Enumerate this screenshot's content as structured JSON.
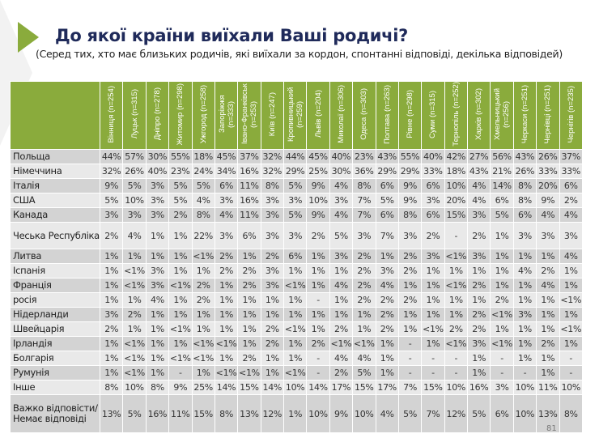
{
  "title": "До якої країни виїхали Ваші родичі?",
  "subtitle": "(Серед тих, хто має близьких родичів, які виїхали за кордон, спонтанні відповіді, декілька відповідей)",
  "page_number": "81",
  "colors": {
    "header": "#8aab3c",
    "row_dark": "#d3d3d3",
    "row_light": "#e9e9e9",
    "title": "#1f2a5a"
  },
  "columns": [
    "Вінниця (n=254)",
    "Луцьк (n=315)",
    "Дніпро (n=278)",
    "Житомир (n=298)",
    "Ужгород (n=258)",
    "Запоріжжя (n=333)",
    "Івано-Франківськ (n=253)",
    "Київ (n=247)",
    "Кропивницький (n=259)",
    "Львів (n=204)",
    "Миколаї (n=306)",
    "Одеса (n=303)",
    "Полтава (n=263)",
    "Рівне (n=298)",
    "Суми (n=315)",
    "Тернопіль (n=252)",
    "Харків (n=302)",
    "Хмельницький (n=256)",
    "Черкаси (n=251)",
    "Чернівці (n=251)",
    "Чернігів (n=235)"
  ],
  "rows": [
    {
      "label": "Польща",
      "values": [
        "44%",
        "57%",
        "30%",
        "55%",
        "18%",
        "45%",
        "37%",
        "32%",
        "44%",
        "45%",
        "40%",
        "23%",
        "43%",
        "55%",
        "40%",
        "42%",
        "27%",
        "56%",
        "43%",
        "26%",
        "37%"
      ]
    },
    {
      "label": "Німеччина",
      "values": [
        "32%",
        "26%",
        "40%",
        "23%",
        "24%",
        "34%",
        "16%",
        "32%",
        "29%",
        "25%",
        "30%",
        "36%",
        "29%",
        "29%",
        "33%",
        "18%",
        "43%",
        "21%",
        "26%",
        "33%",
        "33%"
      ]
    },
    {
      "label": "Італія",
      "values": [
        "9%",
        "5%",
        "3%",
        "5%",
        "5%",
        "6%",
        "11%",
        "8%",
        "5%",
        "9%",
        "4%",
        "8%",
        "6%",
        "9%",
        "6%",
        "10%",
        "4%",
        "14%",
        "8%",
        "20%",
        "6%"
      ]
    },
    {
      "label": "США",
      "values": [
        "5%",
        "10%",
        "3%",
        "5%",
        "4%",
        "3%",
        "16%",
        "3%",
        "3%",
        "10%",
        "3%",
        "7%",
        "5%",
        "9%",
        "3%",
        "20%",
        "4%",
        "6%",
        "8%",
        "9%",
        "2%"
      ]
    },
    {
      "label": "Канада",
      "values": [
        "3%",
        "3%",
        "3%",
        "2%",
        "8%",
        "4%",
        "11%",
        "3%",
        "5%",
        "9%",
        "4%",
        "7%",
        "6%",
        "8%",
        "6%",
        "15%",
        "3%",
        "5%",
        "6%",
        "4%",
        "4%"
      ]
    },
    {
      "label": "Чеська Республіка",
      "values": [
        "2%",
        "4%",
        "1%",
        "1%",
        "22%",
        "3%",
        "6%",
        "3%",
        "3%",
        "2%",
        "5%",
        "3%",
        "7%",
        "3%",
        "2%",
        "-",
        "2%",
        "1%",
        "3%",
        "3%",
        "3%"
      ]
    },
    {
      "label": "Литва",
      "values": [
        "1%",
        "1%",
        "1%",
        "1%",
        "<1%",
        "2%",
        "1%",
        "2%",
        "6%",
        "1%",
        "3%",
        "2%",
        "1%",
        "2%",
        "3%",
        "<1%",
        "3%",
        "1%",
        "1%",
        "1%",
        "4%"
      ]
    },
    {
      "label": "Іспанія",
      "values": [
        "1%",
        "<1%",
        "3%",
        "1%",
        "1%",
        "2%",
        "2%",
        "3%",
        "1%",
        "1%",
        "1%",
        "2%",
        "3%",
        "2%",
        "1%",
        "1%",
        "1%",
        "1%",
        "4%",
        "2%",
        "1%"
      ]
    },
    {
      "label": "Франція",
      "values": [
        "1%",
        "<1%",
        "3%",
        "<1%",
        "2%",
        "1%",
        "2%",
        "3%",
        "<1%",
        "1%",
        "4%",
        "2%",
        "4%",
        "1%",
        "1%",
        "<1%",
        "2%",
        "1%",
        "1%",
        "4%",
        "1%"
      ]
    },
    {
      "label": "росія",
      "values": [
        "1%",
        "1%",
        "4%",
        "1%",
        "2%",
        "1%",
        "1%",
        "1%",
        "1%",
        "-",
        "1%",
        "2%",
        "2%",
        "2%",
        "1%",
        "1%",
        "1%",
        "2%",
        "1%",
        "1%",
        "<1%"
      ]
    },
    {
      "label": "Нідерланди",
      "values": [
        "3%",
        "2%",
        "1%",
        "1%",
        "1%",
        "1%",
        "1%",
        "1%",
        "1%",
        "1%",
        "1%",
        "1%",
        "2%",
        "1%",
        "1%",
        "1%",
        "2%",
        "<1%",
        "3%",
        "1%",
        "1%"
      ]
    },
    {
      "label": "Швейцарія",
      "values": [
        "2%",
        "1%",
        "1%",
        "<1%",
        "1%",
        "1%",
        "1%",
        "2%",
        "<1%",
        "1%",
        "2%",
        "1%",
        "2%",
        "1%",
        "<1%",
        "2%",
        "2%",
        "1%",
        "1%",
        "1%",
        "<1%"
      ]
    },
    {
      "label": "Ірландія",
      "values": [
        "1%",
        "<1%",
        "1%",
        "1%",
        "<1%",
        "<1%",
        "1%",
        "2%",
        "1%",
        "2%",
        "<1%",
        "<1%",
        "1%",
        "-",
        "1%",
        "<1%",
        "3%",
        "<1%",
        "1%",
        "2%",
        "1%"
      ]
    },
    {
      "label": "Болгарія",
      "values": [
        "1%",
        "<1%",
        "1%",
        "<1%",
        "<1%",
        "1%",
        "2%",
        "1%",
        "1%",
        "-",
        "4%",
        "4%",
        "1%",
        "-",
        "-",
        "-",
        "1%",
        "-",
        "1%",
        "1%",
        "-"
      ]
    },
    {
      "label": "Румунія",
      "values": [
        "1%",
        "<1%",
        "1%",
        "-",
        "1%",
        "<1%",
        "<1%",
        "1%",
        "<1%",
        "-",
        "2%",
        "5%",
        "1%",
        "-",
        "-",
        "-",
        "1%",
        "-",
        "-",
        "1%",
        "-"
      ]
    },
    {
      "label": "Інше",
      "values": [
        "8%",
        "10%",
        "8%",
        "9%",
        "25%",
        "14%",
        "15%",
        "14%",
        "10%",
        "14%",
        "17%",
        "15%",
        "17%",
        "7%",
        "15%",
        "10%",
        "16%",
        "3%",
        "10%",
        "11%",
        "10%"
      ]
    },
    {
      "label": "Важко відповісти/Немає відповіді",
      "values": [
        "13%",
        "5%",
        "16%",
        "11%",
        "15%",
        "8%",
        "13%",
        "12%",
        "1%",
        "10%",
        "9%",
        "10%",
        "4%",
        "5%",
        "7%",
        "12%",
        "5%",
        "6%",
        "10%",
        "13%",
        "8%"
      ]
    }
  ]
}
